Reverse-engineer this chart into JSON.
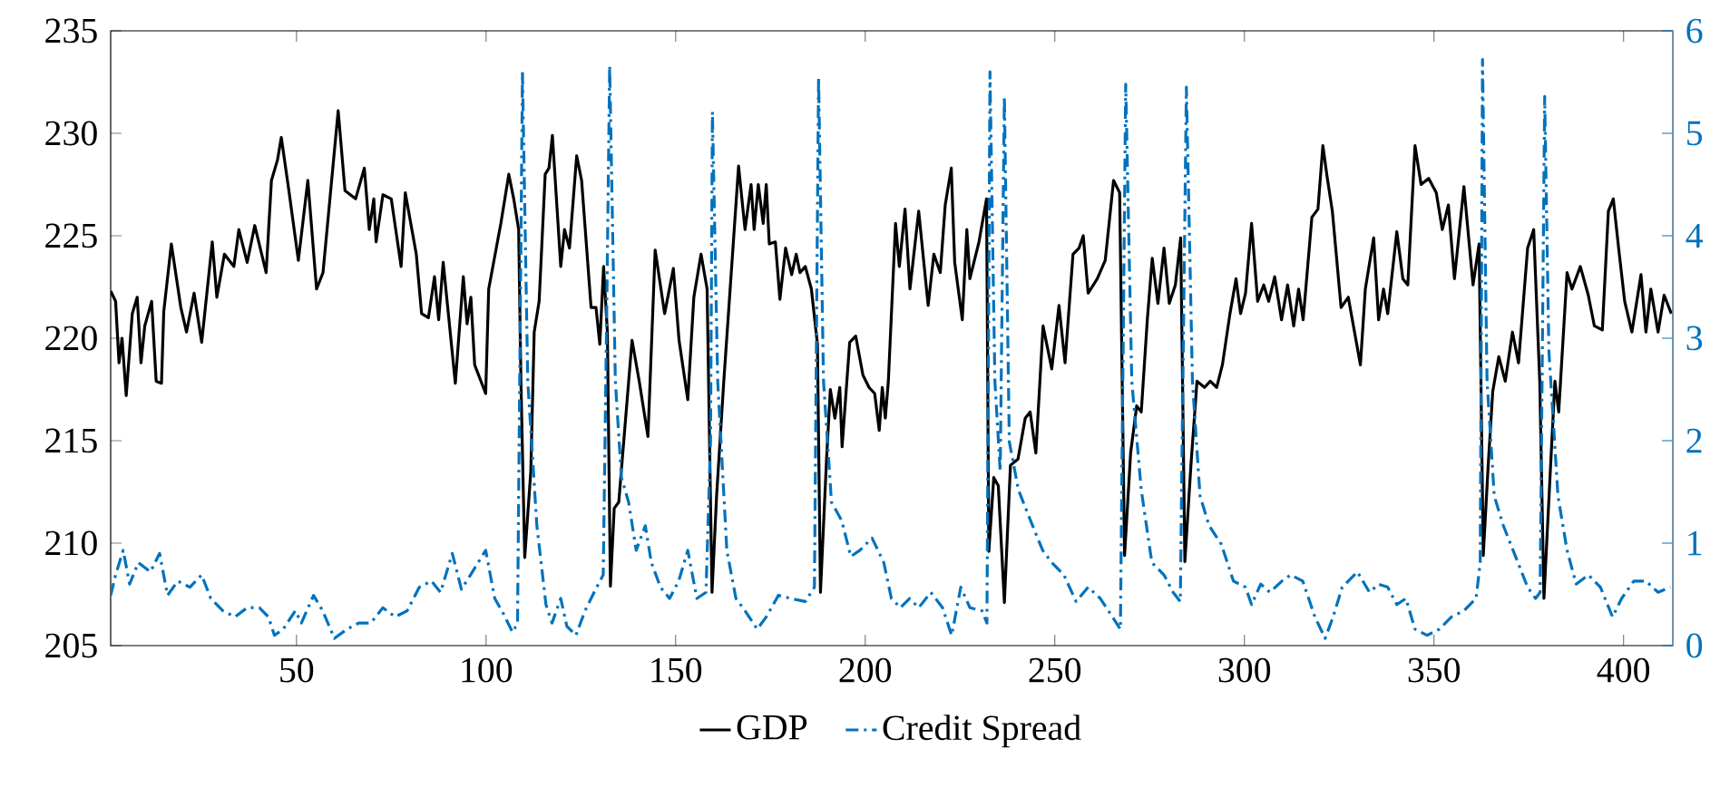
{
  "chart_data": {
    "type": "line",
    "xlim": [
      1,
      413
    ],
    "xticks": [
      50,
      100,
      150,
      200,
      250,
      300,
      350,
      400
    ],
    "ylim": [
      205,
      235
    ],
    "yticks": [
      205,
      210,
      215,
      220,
      225,
      230,
      235
    ],
    "y2lim": [
      0,
      6
    ],
    "y2ticks": [
      0,
      1,
      2,
      3,
      4,
      5,
      6
    ],
    "legend": "bottom",
    "series": [
      {
        "name": "GDP",
        "color": "#000000",
        "line_style": "solid",
        "x": [
          1,
          2.3,
          3.2,
          4,
          5.1,
          6.7,
          8,
          9,
          10,
          11.8,
          13,
          14.4,
          15,
          17,
          19.5,
          21,
          23,
          25,
          27.8,
          29,
          31,
          33.5,
          34.8,
          37,
          39,
          42,
          43.4,
          45,
          46,
          48,
          50.5,
          53,
          55.3,
          57,
          61,
          62.8,
          65.6,
          67.9,
          69.2,
          70.4,
          71,
          72.8,
          75,
          77.6,
          78.7,
          81.6,
          83,
          84.8,
          86.4,
          87.5,
          88.7,
          91.9,
          94,
          95,
          96,
          97,
          99.9,
          100.7,
          103.9,
          106,
          107.3,
          108.6,
          109.2,
          110.2,
          111.8,
          112.7,
          114,
          115.6,
          116.6,
          117.5,
          119.7,
          120.7,
          122,
          123.9,
          125.2,
          127.7,
          129,
          130,
          131,
          132,
          132.8,
          133.8,
          135,
          138.5,
          140.4,
          142.7,
          144.6,
          147.1,
          149.4,
          150.9,
          153.2,
          154.8,
          156.7,
          158.3,
          159.2,
          159.6,
          160.8,
          162.7,
          164.6,
          166.6,
          168.3,
          169.9,
          170.7,
          171.8,
          173.1,
          173.9,
          174.7,
          176.3,
          177.5,
          179,
          180.6,
          181.8,
          182.8,
          184.2,
          185.8,
          187.4,
          188.2,
          189.8,
          190.8,
          192,
          193.3,
          193.9,
          195.9,
          197.5,
          199.4,
          201,
          202.5,
          203.7,
          204.5,
          205.3,
          206.1,
          208,
          209,
          210.5,
          211.8,
          214.1,
          216.6,
          218.1,
          219.8,
          221.1,
          222.7,
          223.6,
          225.6,
          226.8,
          227.6,
          230,
          232,
          232.6,
          233.9,
          235.1,
          236.7,
          238.3,
          240.3,
          242.2,
          243.5,
          245,
          246.9,
          249.2,
          251.1,
          252.7,
          254.8,
          256.4,
          257.5,
          258.8,
          261.2,
          263.3,
          265.5,
          267.1,
          268.4,
          270,
          271.6,
          272.8,
          274.4,
          275.7,
          277.2,
          278.8,
          280.2,
          281.8,
          283.2,
          284.3,
          285.9,
          287.5,
          289.5,
          291,
          292.7,
          294.2,
          296.2,
          297.8,
          299,
          300.3,
          301.9,
          303.5,
          305.1,
          306.4,
          308,
          309.8,
          311.4,
          313,
          314.3,
          315.5,
          317.8,
          319.4,
          320.7,
          321.8,
          323.2,
          325.5,
          327.4,
          330.6,
          331.9,
          334.1,
          335.4,
          336.7,
          337.8,
          340.2,
          341.8,
          343.1,
          345,
          346.6,
          348.6,
          350.6,
          352.2,
          353.8,
          355.4,
          357.9,
          360.3,
          361.9,
          363,
          364.3,
          365.5,
          367.1,
          368.8,
          370.7,
          372.3,
          374.7,
          376.3,
          377.9,
          379,
          380.6,
          381.9,
          382.9,
          385.1,
          386.4,
          388.6,
          390.7,
          392.3,
          394.4,
          396,
          397.3,
          398.7,
          400.3,
          402.2,
          404.6,
          405.9,
          407.2,
          409.1,
          410.7,
          412.6
        ],
        "values": [
          222.3,
          221.8,
          218.8,
          220,
          217.2,
          221.2,
          222,
          218.8,
          220.6,
          221.8,
          217.9,
          217.8,
          221.3,
          224.6,
          221.5,
          220.3,
          222.2,
          219.8,
          224.7,
          222,
          224.1,
          223.5,
          225.3,
          223.7,
          225.5,
          223.2,
          227.7,
          228.7,
          229.8,
          227.2,
          223.8,
          227.7,
          222.4,
          223.2,
          231.1,
          227.2,
          226.8,
          228.3,
          225.3,
          226.8,
          224.7,
          227,
          226.8,
          223.5,
          227.1,
          224.1,
          221.2,
          221,
          223,
          220.9,
          223.7,
          217.8,
          223,
          220.7,
          222,
          218.7,
          217.3,
          222.4,
          225.6,
          228,
          226.8,
          225.3,
          217.9,
          209.3,
          213.5,
          220.3,
          221.8,
          228,
          228.3,
          229.9,
          223.5,
          225.3,
          224.4,
          228.9,
          227.7,
          221.5,
          221.5,
          219.7,
          223.5,
          220.3,
          207.9,
          211.7,
          212,
          219.9,
          217.9,
          215.2,
          224.3,
          221.2,
          223.4,
          219.9,
          217,
          222,
          224.1,
          222.4,
          212,
          207.6,
          212.3,
          217.9,
          223,
          228.4,
          225.3,
          227.5,
          225.3,
          227.5,
          225.6,
          227.5,
          224.6,
          224.7,
          221.9,
          224.4,
          223.1,
          224.1,
          223.2,
          223.5,
          222.4,
          219.7,
          207.6,
          214.1,
          217.5,
          216.1,
          217.6,
          214.7,
          219.8,
          220.1,
          218.2,
          217.6,
          217.3,
          215.5,
          217.6,
          216.1,
          217.9,
          225.6,
          223.5,
          226.3,
          222.4,
          226.2,
          221.6,
          224.1,
          223.2,
          226.5,
          228.3,
          223.7,
          220.9,
          225.3,
          222.9,
          224.7,
          226.8,
          209.6,
          213.2,
          212.8,
          207.1,
          213.8,
          214.1,
          216.1,
          216.4,
          214.4,
          220.6,
          218.5,
          221.6,
          218.8,
          224.1,
          224.4,
          225,
          222.2,
          222.9,
          223.8,
          227.7,
          227.1,
          209.4,
          214.4,
          216.7,
          216.4,
          220.9,
          223.9,
          221.7,
          224.4,
          221.7,
          222.6,
          224.9,
          209.1,
          213.8,
          217.9,
          217.6,
          217.9,
          217.6,
          218.7,
          221.2,
          222.9,
          221.2,
          222.2,
          225.6,
          221.8,
          222.6,
          221.8,
          223,
          220.9,
          222.6,
          220.6,
          222.4,
          220.9,
          225.9,
          226.3,
          229.4,
          227.9,
          226.2,
          221.5,
          222,
          218.7,
          222.4,
          224.9,
          220.9,
          222.4,
          221.2,
          225.2,
          222.9,
          222.6,
          229.4,
          227.5,
          227.8,
          227.1,
          225.3,
          226.5,
          222.9,
          227.4,
          222.6,
          224.6,
          209.4,
          213.8,
          217.4,
          219.1,
          217.9,
          220.3,
          218.8,
          224.4,
          225.3,
          217.9,
          207.3,
          213.2,
          217.9,
          216.4,
          223.2,
          222.4,
          223.5,
          222.1,
          220.6,
          220.4,
          226.2,
          226.8,
          224.4,
          221.8,
          220.3,
          223.1,
          220.3,
          222.4,
          220.3,
          222.1,
          221.2
        ]
      },
      {
        "name": "Credit Spread",
        "color": "#0072bd",
        "line_style": "dashdot",
        "axis": "y2",
        "x": [
          1,
          2.3,
          4.3,
          6,
          8.3,
          11.5,
          13.9,
          16,
          18.7,
          21.9,
          25,
          27.4,
          30.6,
          33.8,
          37,
          40.2,
          42.6,
          44.2,
          46.5,
          49.7,
          51.3,
          54.5,
          56.9,
          60,
          63.3,
          66.4,
          69.6,
          72.8,
          76,
          79.2,
          82.4,
          85.6,
          88,
          91.1,
          93.5,
          95.9,
          99.9,
          102.3,
          104.6,
          107,
          108.3,
          109.6,
          111,
          113.4,
          115.8,
          117.4,
          119.7,
          121.3,
          123.7,
          126.1,
          128.5,
          130.9,
          131.8,
          132.6,
          134.1,
          135.7,
          137.6,
          139.6,
          142,
          143.6,
          146,
          148.4,
          150.8,
          153.2,
          155.6,
          158,
          159.2,
          159.7,
          161.1,
          163.5,
          165.9,
          168.3,
          171.5,
          173.9,
          177.1,
          180.3,
          184.2,
          186.6,
          187.7,
          189,
          191.1,
          193.8,
          196.2,
          198.6,
          201.8,
          204.9,
          206.9,
          209.3,
          211.7,
          214.1,
          217.3,
          220.4,
          222.8,
          225.2,
          227.6,
          230.8,
          232.1,
          232.9,
          234.2,
          235.6,
          236.7,
          238,
          240.4,
          243.6,
          246.8,
          249.2,
          252.4,
          255.6,
          258.8,
          262,
          265.2,
          267.3,
          268.7,
          270.3,
          272.8,
          275.6,
          278.8,
          281.2,
          283.1,
          284.7,
          286.3,
          288.3,
          290.7,
          293.9,
          297.1,
          300.3,
          301.9,
          304.3,
          306.7,
          309.9,
          312.2,
          315.4,
          318.6,
          321.3,
          323.4,
          325.8,
          329.8,
          333,
          335.4,
          337.8,
          340.2,
          342.6,
          345,
          348.2,
          351.4,
          354.6,
          357.9,
          361.1,
          362.2,
          362.8,
          364,
          365.9,
          368.3,
          371.5,
          374.7,
          376.8,
          378,
          379.2,
          380.3,
          382.7,
          385.1,
          387.5,
          390.7,
          393.9,
          397.1,
          399.5,
          402.7,
          405.9,
          409.1,
          412.3
        ],
        "values": [
          0.49,
          0.69,
          0.93,
          0.6,
          0.81,
          0.72,
          0.9,
          0.49,
          0.63,
          0.57,
          0.69,
          0.46,
          0.34,
          0.28,
          0.37,
          0.37,
          0.28,
          0.1,
          0.16,
          0.34,
          0.22,
          0.49,
          0.34,
          0.07,
          0.16,
          0.22,
          0.22,
          0.37,
          0.28,
          0.34,
          0.57,
          0.63,
          0.52,
          0.9,
          0.55,
          0.69,
          0.93,
          0.46,
          0.31,
          0.13,
          0.22,
          5.6,
          2.58,
          1.17,
          0.4,
          0.22,
          0.46,
          0.19,
          0.1,
          0.34,
          0.52,
          0.69,
          3.17,
          5.66,
          2.58,
          1.64,
          1.4,
          0.93,
          1.17,
          0.81,
          0.57,
          0.46,
          0.63,
          0.93,
          0.46,
          0.52,
          1.99,
          5.21,
          2.58,
          0.93,
          0.46,
          0.34,
          0.16,
          0.28,
          0.49,
          0.46,
          0.43,
          0.57,
          5.54,
          2.58,
          1.4,
          1.22,
          0.87,
          0.93,
          1.05,
          0.81,
          0.46,
          0.37,
          0.46,
          0.37,
          0.52,
          0.37,
          0.1,
          0.57,
          0.37,
          0.34,
          0.22,
          5.6,
          2.58,
          1.7,
          5.36,
          1.99,
          1.52,
          1.22,
          0.93,
          0.81,
          0.69,
          0.43,
          0.57,
          0.46,
          0.28,
          0.16,
          5.48,
          2.58,
          1.52,
          0.81,
          0.69,
          0.52,
          0.43,
          5.45,
          2.58,
          1.46,
          1.17,
          0.99,
          0.63,
          0.57,
          0.4,
          0.6,
          0.52,
          0.63,
          0.69,
          0.63,
          0.28,
          0.07,
          0.28,
          0.57,
          0.72,
          0.52,
          0.6,
          0.57,
          0.4,
          0.46,
          0.16,
          0.1,
          0.16,
          0.28,
          0.34,
          0.46,
          0.81,
          5.72,
          2.58,
          1.46,
          1.17,
          0.87,
          0.57,
          0.46,
          0.52,
          5.36,
          2.88,
          1.46,
          0.93,
          0.6,
          0.69,
          0.57,
          0.28,
          0.46,
          0.63,
          0.63,
          0.52,
          0.57
        ]
      }
    ]
  }
}
